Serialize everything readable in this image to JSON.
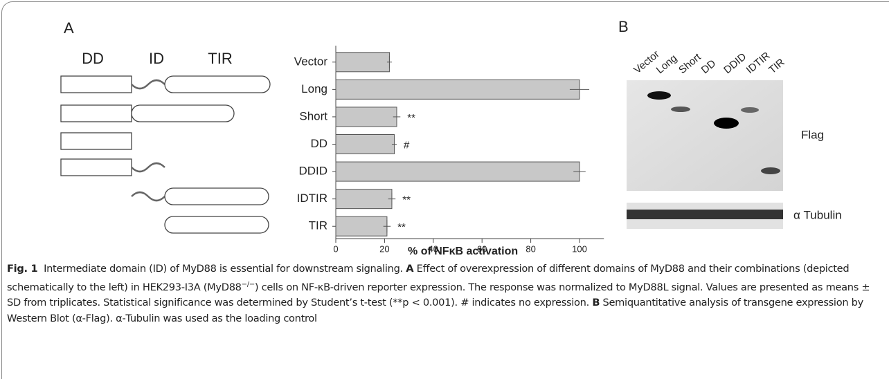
{
  "panel_labels": [
    "A",
    "B"
  ],
  "schematic": {
    "labels": [
      "DD",
      "ID",
      "TIR"
    ]
  },
  "chart_data": {
    "type": "bar",
    "orientation": "horizontal",
    "categories": [
      "Vector",
      "Long",
      "Short",
      "DD",
      "DDID",
      "IDTIR",
      "TIR"
    ],
    "values": [
      22,
      100,
      25,
      24,
      100,
      23,
      21
    ],
    "errors": [
      1,
      4,
      1.5,
      1,
      2.5,
      1.5,
      1.5
    ],
    "significance": [
      null,
      null,
      "**",
      "#",
      null,
      "**",
      "**"
    ],
    "xlabel": "% of NFκB activation",
    "xlim": [
      0,
      110
    ],
    "xticks": [
      0,
      20,
      40,
      60,
      80,
      100
    ],
    "color": "#c8c8c8"
  },
  "blot": {
    "lanes": [
      "Vector",
      "Long",
      "Short",
      "DD",
      "DDID",
      "IDTIR",
      "TIR"
    ],
    "labels": [
      "Flag",
      "α Tubulin"
    ]
  },
  "caption": {
    "figure": "Fig. 1",
    "title": "Intermediate domain (ID) of MyD88 is essential for downstream signaling.",
    "a_label": "A",
    "a_text_1": "Effect of overexpression of different domains of MyD88 and their combinations (depicted schematically to the left) in HEK293-I3A (MyD88",
    "a_sup": "−/−",
    "a_text_2": ") cells on NF-κB-driven reporter expression. The response was normalized to MyD88L signal. Values are presented as means ± SD from triplicates. Statistical significance was determined by Student’s t-test (**p < 0.001). # indicates no expression.",
    "b_label": "B",
    "b_text": "Semiquantitative analysis of transgene expression by Western Blot (α-Flag). α-Tubulin was used as the loading control"
  }
}
